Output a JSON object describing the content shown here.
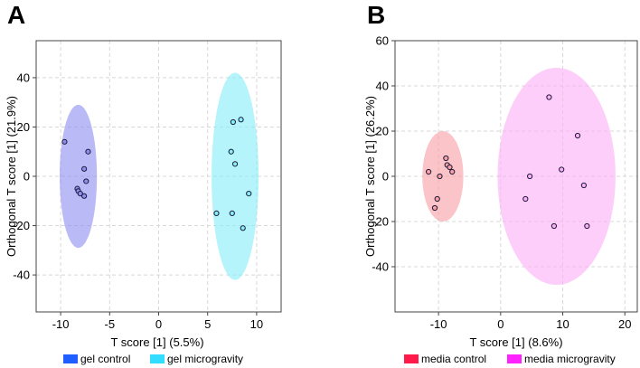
{
  "chart_data": [
    {
      "panel_label": "A",
      "type": "scatter",
      "xlabel": "T score [1] (5.5%)",
      "ylabel": "Orthogonal T score [1] (21.9%)",
      "xlim": [
        -12.5,
        12.5
      ],
      "ylim": [
        -55,
        55
      ],
      "xticks": [
        -10,
        -5,
        0,
        5,
        10
      ],
      "yticks": [
        -40,
        -20,
        0,
        20,
        40
      ],
      "grid": true,
      "legend_position": "bottom",
      "series": [
        {
          "name": "gel control",
          "color": "#1f5fff",
          "ellipse_color": "#8f8ff0",
          "ellipse": {
            "cx": -8.2,
            "cy": 0,
            "rx": 1.9,
            "ry": 29
          },
          "points": [
            {
              "x": -9.6,
              "y": 14
            },
            {
              "x": -7.2,
              "y": 10
            },
            {
              "x": -7.6,
              "y": 3
            },
            {
              "x": -7.4,
              "y": -2
            },
            {
              "x": -8.3,
              "y": -5
            },
            {
              "x": -8.2,
              "y": -6
            },
            {
              "x": -8.0,
              "y": -7
            },
            {
              "x": -7.6,
              "y": -8
            }
          ]
        },
        {
          "name": "gel microgravity",
          "color": "#33ddff",
          "ellipse_color": "#88eef8",
          "ellipse": {
            "cx": 7.8,
            "cy": 0,
            "rx": 2.4,
            "ry": 42
          },
          "points": [
            {
              "x": 8.4,
              "y": 23
            },
            {
              "x": 7.6,
              "y": 22
            },
            {
              "x": 7.4,
              "y": 10
            },
            {
              "x": 7.8,
              "y": 5
            },
            {
              "x": 9.2,
              "y": -7
            },
            {
              "x": 5.9,
              "y": -15
            },
            {
              "x": 7.5,
              "y": -15
            },
            {
              "x": 8.6,
              "y": -21
            }
          ]
        }
      ]
    },
    {
      "panel_label": "B",
      "type": "scatter",
      "xlabel": "T score [1] (8.6%)",
      "ylabel": "Orthogonal T score [1] (26.2%)",
      "xlim": [
        -17,
        22
      ],
      "ylim": [
        -60,
        60
      ],
      "xticks": [
        -10,
        0,
        10,
        20
      ],
      "yticks": [
        -40,
        -20,
        0,
        20,
        40,
        60
      ],
      "grid": true,
      "legend_position": "bottom",
      "series": [
        {
          "name": "media control",
          "color": "#ff1a4a",
          "ellipse_color": "#f7a0a6",
          "ellipse": {
            "cx": -9.3,
            "cy": 0,
            "rx": 3.3,
            "ry": 20
          },
          "points": [
            {
              "x": -11.6,
              "y": 2
            },
            {
              "x": -8.8,
              "y": 8
            },
            {
              "x": -8.6,
              "y": 5
            },
            {
              "x": -8.2,
              "y": 4
            },
            {
              "x": -7.8,
              "y": 2
            },
            {
              "x": -9.8,
              "y": 0
            },
            {
              "x": -10.2,
              "y": -10
            },
            {
              "x": -10.6,
              "y": -14
            }
          ]
        },
        {
          "name": "media microgravity",
          "color": "#ff22ff",
          "ellipse_color": "#fcb0f6",
          "ellipse": {
            "cx": 9.0,
            "cy": 0,
            "rx": 9.5,
            "ry": 48
          },
          "points": [
            {
              "x": 7.8,
              "y": 35
            },
            {
              "x": 12.4,
              "y": 18
            },
            {
              "x": 9.8,
              "y": 3
            },
            {
              "x": 4.7,
              "y": 0
            },
            {
              "x": 13.4,
              "y": -4
            },
            {
              "x": 4.0,
              "y": -10
            },
            {
              "x": 8.6,
              "y": -22
            },
            {
              "x": 13.9,
              "y": -22
            }
          ]
        }
      ]
    }
  ]
}
